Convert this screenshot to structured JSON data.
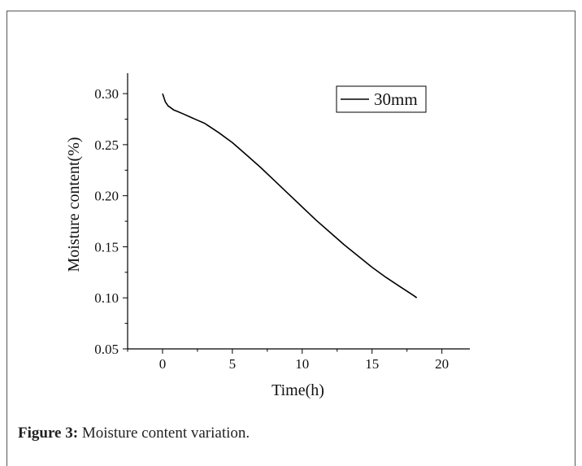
{
  "caption": {
    "label": "Figure 3:",
    "text": "Moisture content variation."
  },
  "chart_data": {
    "type": "line",
    "xlabel": "Time(h)",
    "ylabel": "Moisture content(%)",
    "xlim": [
      -2.5,
      22
    ],
    "ylim": [
      0.05,
      0.32
    ],
    "xticks": [
      0,
      5,
      10,
      15,
      20
    ],
    "xtick_labels": [
      "0",
      "5",
      "10",
      "15",
      "20"
    ],
    "yticks": [
      0.05,
      0.1,
      0.15,
      0.2,
      0.25,
      0.3
    ],
    "ytick_labels": [
      "0.05",
      "0.10",
      "0.15",
      "0.20",
      "0.25",
      "0.30"
    ],
    "grid": false,
    "legend": "top-right",
    "series": [
      {
        "name": "30mm",
        "color": "#000000",
        "x": [
          0,
          0.1,
          0.2,
          0.4,
          0.6,
          0.8,
          1,
          1.5,
          2,
          2.5,
          3,
          4,
          5,
          6,
          7,
          8,
          9,
          10,
          11,
          12,
          13,
          14,
          15,
          16,
          17,
          18,
          18.2
        ],
        "y": [
          0.3,
          0.296,
          0.292,
          0.288,
          0.286,
          0.284,
          0.283,
          0.28,
          0.277,
          0.274,
          0.271,
          0.262,
          0.252,
          0.24,
          0.228,
          0.215,
          0.202,
          0.189,
          0.176,
          0.164,
          0.152,
          0.141,
          0.13,
          0.12,
          0.111,
          0.102,
          0.1
        ]
      }
    ]
  }
}
